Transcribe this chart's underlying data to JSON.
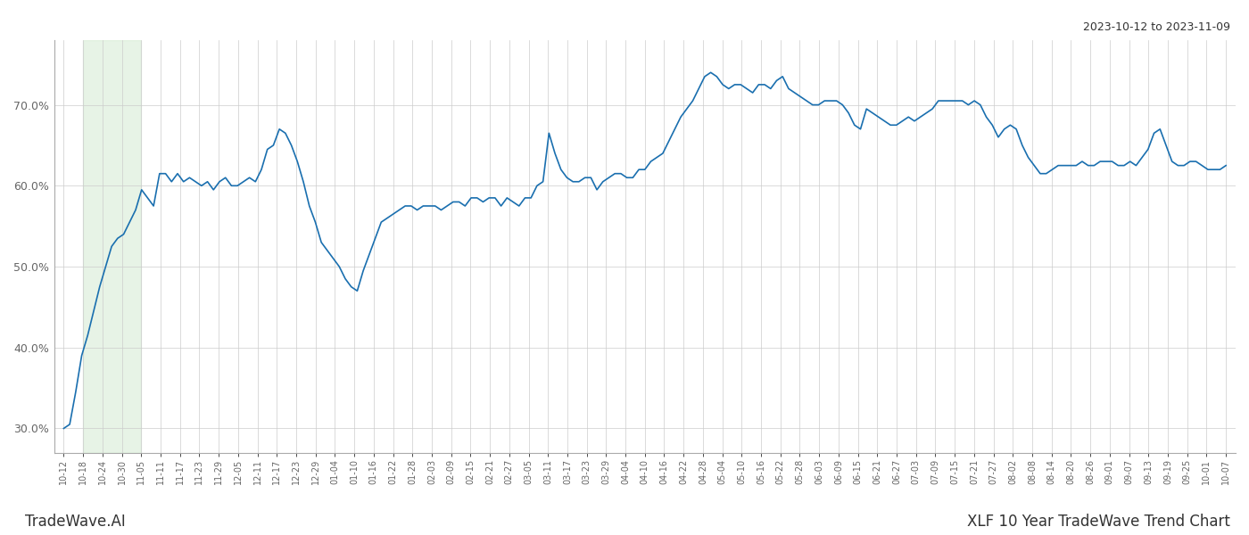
{
  "title_top_right": "2023-10-12 to 2023-11-09",
  "label_bottom_left": "TradeWave.AI",
  "label_bottom_right": "XLF 10 Year TradeWave Trend Chart",
  "line_color": "#1a6faf",
  "line_width": 1.2,
  "shade_color": "#d4ead2",
  "shade_alpha": 0.55,
  "ylim": [
    27.0,
    78.0
  ],
  "yticks": [
    30.0,
    40.0,
    50.0,
    60.0,
    70.0
  ],
  "background_color": "#ffffff",
  "grid_color": "#cccccc",
  "tick_label_color": "#666666",
  "x_labels": [
    "10-12",
    "10-18",
    "10-24",
    "10-30",
    "11-05",
    "11-11",
    "11-17",
    "11-23",
    "11-29",
    "12-05",
    "12-11",
    "12-17",
    "12-23",
    "12-29",
    "01-04",
    "01-10",
    "01-16",
    "01-22",
    "01-28",
    "02-03",
    "02-09",
    "02-15",
    "02-21",
    "02-27",
    "03-05",
    "03-11",
    "03-17",
    "03-23",
    "03-29",
    "04-04",
    "04-10",
    "04-16",
    "04-22",
    "04-28",
    "05-04",
    "05-10",
    "05-16",
    "05-22",
    "05-28",
    "06-03",
    "06-09",
    "06-15",
    "06-21",
    "06-27",
    "07-03",
    "07-09",
    "07-15",
    "07-21",
    "07-27",
    "08-02",
    "08-08",
    "08-14",
    "08-20",
    "08-26",
    "09-01",
    "09-07",
    "09-13",
    "09-19",
    "09-25",
    "10-01",
    "10-07"
  ],
  "shade_start_label": "10-18",
  "shade_end_label": "11-05",
  "values": [
    30.0,
    30.5,
    34.5,
    39.0,
    41.5,
    44.5,
    47.5,
    50.0,
    52.5,
    53.5,
    54.0,
    55.5,
    57.0,
    59.5,
    58.5,
    57.5,
    61.5,
    61.5,
    60.5,
    61.5,
    60.5,
    61.0,
    60.5,
    60.0,
    60.5,
    59.5,
    60.5,
    61.0,
    60.0,
    60.0,
    60.5,
    61.0,
    60.5,
    62.0,
    64.5,
    65.0,
    67.0,
    66.5,
    65.0,
    63.0,
    60.5,
    57.5,
    55.5,
    53.0,
    52.0,
    51.0,
    50.0,
    48.5,
    47.5,
    47.0,
    49.5,
    51.5,
    53.5,
    55.5,
    56.0,
    56.5,
    57.0,
    57.5,
    57.5,
    57.0,
    57.5,
    57.5,
    57.5,
    57.0,
    57.5,
    58.0,
    58.0,
    57.5,
    58.5,
    58.5,
    58.0,
    58.5,
    58.5,
    57.5,
    58.5,
    58.0,
    57.5,
    58.5,
    58.5,
    60.0,
    60.5,
    66.5,
    64.0,
    62.0,
    61.0,
    60.5,
    60.5,
    61.0,
    61.0,
    59.5,
    60.5,
    61.0,
    61.5,
    61.5,
    61.0,
    61.0,
    62.0,
    62.0,
    63.0,
    63.5,
    64.0,
    65.5,
    67.0,
    68.5,
    69.5,
    70.5,
    72.0,
    73.5,
    74.0,
    73.5,
    72.5,
    72.0,
    72.5,
    72.5,
    72.0,
    71.5,
    72.5,
    72.5,
    72.0,
    73.0,
    73.5,
    72.0,
    71.5,
    71.0,
    70.5,
    70.0,
    70.0,
    70.5,
    70.5,
    70.5,
    70.0,
    69.0,
    67.5,
    67.0,
    69.5,
    69.0,
    68.5,
    68.0,
    67.5,
    67.5,
    68.0,
    68.5,
    68.0,
    68.5,
    69.0,
    69.5,
    70.5,
    70.5,
    70.5,
    70.5,
    70.5,
    70.0,
    70.5,
    70.0,
    68.5,
    67.5,
    66.0,
    67.0,
    67.5,
    67.0,
    65.0,
    63.5,
    62.5,
    61.5,
    61.5,
    62.0,
    62.5,
    62.5,
    62.5,
    62.5,
    63.0,
    62.5,
    62.5,
    63.0,
    63.0,
    63.0,
    62.5,
    62.5,
    63.0,
    62.5,
    63.5,
    64.5,
    66.5,
    67.0,
    65.0,
    63.0,
    62.5,
    62.5,
    63.0,
    63.0,
    62.5,
    62.0,
    62.0,
    62.0,
    62.5
  ]
}
